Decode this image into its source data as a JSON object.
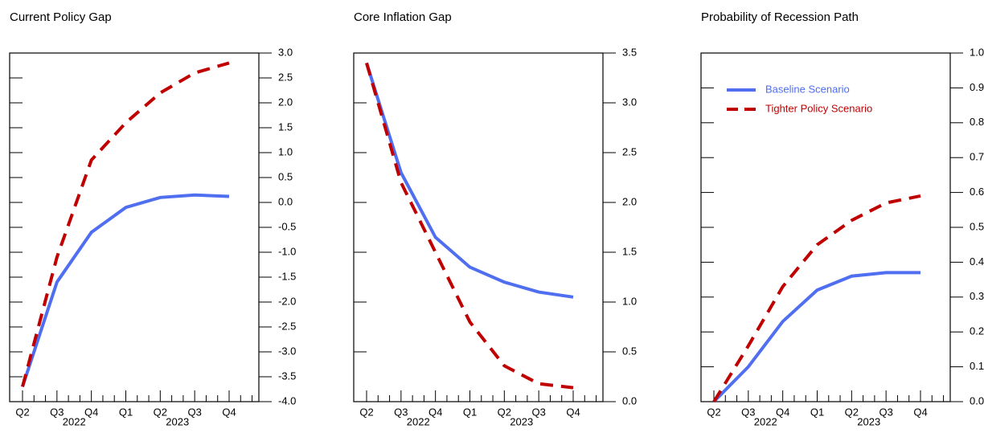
{
  "chart_data": [
    {
      "type": "line",
      "title": "Current Policy Gap",
      "categories": [
        "Q2",
        "Q3",
        "Q4",
        "Q1",
        "Q2",
        "Q3",
        "Q4"
      ],
      "x_groups": [
        "2022",
        "2023"
      ],
      "ylim": [
        -4,
        3
      ],
      "yticks": [
        {
          "value": -4,
          "label": "-4.0"
        },
        {
          "value": -3.5,
          "label": "-3.5"
        },
        {
          "value": -3,
          "label": "-3.0"
        },
        {
          "value": -2.5,
          "label": "-2.5"
        },
        {
          "value": -2,
          "label": "-2.0"
        },
        {
          "value": -1.5,
          "label": "-1.5"
        },
        {
          "value": -1,
          "label": "-1.0"
        },
        {
          "value": -0.5,
          "label": "-0.5"
        },
        {
          "value": 0,
          "label": "0.0"
        },
        {
          "value": 0.5,
          "label": "0.5"
        },
        {
          "value": 1,
          "label": "1.0"
        },
        {
          "value": 1.5,
          "label": "1.5"
        },
        {
          "value": 2,
          "label": "2.0"
        },
        {
          "value": 2.5,
          "label": "2.5"
        },
        {
          "value": 3,
          "label": "3.0"
        }
      ],
      "series": [
        {
          "color": "#4f6ef0",
          "style": "solid",
          "values": [
            -3.7,
            -1.6,
            -0.6,
            -0.1,
            0.1,
            0.15,
            0.12
          ]
        },
        {
          "color": "#c00000",
          "style": "dashed",
          "values": [
            -3.7,
            -1.1,
            0.85,
            1.6,
            2.2,
            2.6,
            2.8
          ]
        }
      ]
    },
    {
      "type": "line",
      "title": "Core Inflation Gap",
      "categories": [
        "Q2",
        "Q3",
        "Q4",
        "Q1",
        "Q2",
        "Q3",
        "Q4"
      ],
      "x_groups": [
        "2022",
        "2023"
      ],
      "ylim": [
        0,
        3.5
      ],
      "yticks": [
        {
          "value": 0,
          "label": "0.0"
        },
        0.5,
        {
          "value": 1,
          "label": "1.0"
        },
        1.5,
        {
          "value": 2,
          "label": "2.0"
        },
        2.5,
        {
          "value": 3,
          "label": "3.0"
        },
        3.5
      ],
      "series": [
        {
          "color": "#4f6ef0",
          "style": "solid",
          "values": [
            3.4,
            2.3,
            1.65,
            1.35,
            1.2,
            1.1,
            1.05
          ]
        },
        {
          "color": "#c00000",
          "style": "dashed",
          "values": [
            3.4,
            2.2,
            1.5,
            0.8,
            0.36,
            0.18,
            0.14
          ]
        }
      ]
    },
    {
      "type": "line",
      "title": "Probability of Recession Path",
      "categories": [
        "Q2",
        "Q3",
        "Q4",
        "Q1",
        "Q2",
        "Q3",
        "Q4"
      ],
      "x_groups": [
        "2022",
        "2023"
      ],
      "ylim": [
        0,
        1
      ],
      "yticks": [
        {
          "value": 0,
          "label": "0.0"
        },
        0.1,
        0.2,
        0.3,
        0.4,
        0.5,
        0.6,
        0.7,
        0.8,
        0.9,
        {
          "value": 1,
          "label": "1.0"
        }
      ],
      "legend": "upper left",
      "series": [
        {
          "name": "Baseline Scenario",
          "color": "#4f6ef0",
          "style": "solid",
          "values": [
            0,
            0.1,
            0.23,
            0.32,
            0.36,
            0.37,
            0.37
          ]
        },
        {
          "name": "Tighter Policy Scenario",
          "color": "#c00000",
          "style": "dashed",
          "values": [
            0,
            0.16,
            0.33,
            0.45,
            0.52,
            0.57,
            0.59
          ]
        }
      ]
    }
  ]
}
